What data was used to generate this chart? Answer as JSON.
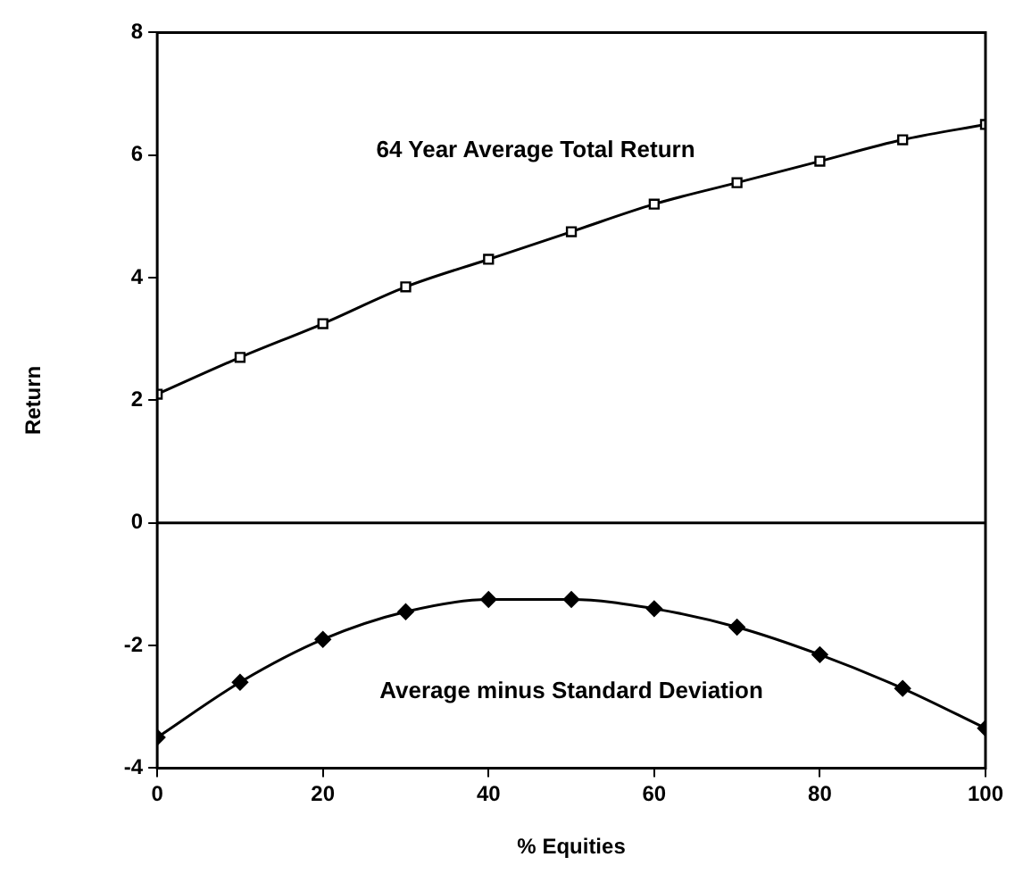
{
  "chart_data": {
    "type": "line",
    "xlabel": "% Equities",
    "ylabel": "Return",
    "x": [
      0,
      10,
      20,
      30,
      40,
      50,
      60,
      70,
      80,
      90,
      100
    ],
    "series": [
      {
        "name": "64 Year Average Total Return",
        "color": "#000000",
        "marker": "square",
        "values": [
          2.1,
          2.7,
          3.25,
          3.85,
          4.3,
          4.75,
          5.2,
          5.55,
          5.9,
          6.25,
          6.5
        ]
      },
      {
        "name": "Average minus Standard Deviation",
        "color": "#000000",
        "marker": "diamond",
        "values": [
          -3.5,
          -2.6,
          -1.9,
          -1.45,
          -1.25,
          -1.25,
          -1.4,
          -1.7,
          -2.15,
          -2.7,
          -3.35
        ]
      }
    ],
    "xlim": [
      0,
      100
    ],
    "xticks": [
      0,
      20,
      40,
      60,
      80,
      100
    ],
    "ylim": [
      -4,
      8
    ],
    "yticks": [
      -4,
      -2,
      0,
      2,
      4,
      6,
      8
    ],
    "ref_lines": [
      {
        "axis": "y",
        "value": 0,
        "color": "#000000"
      }
    ],
    "grid": false,
    "legend": false,
    "line_style": "solid"
  }
}
